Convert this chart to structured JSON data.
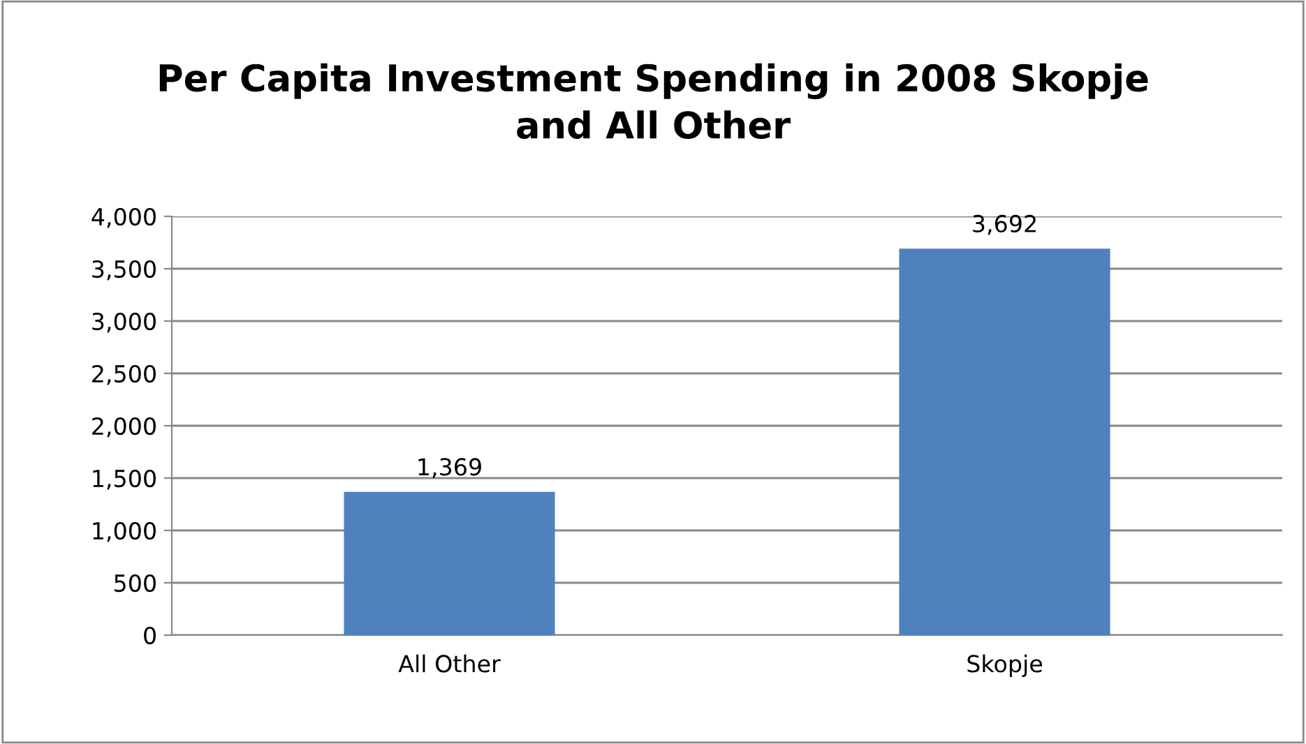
{
  "chart_data": {
    "type": "bar",
    "title": "Per Capita Investment Spending in 2008 Skopje\nand All Other",
    "categories": [
      "All Other",
      "Skopje"
    ],
    "values": [
      1369,
      3692
    ],
    "color": "#4f81bd",
    "value_labels": [
      "1,369",
      "3,692"
    ],
    "ylim": [
      0,
      4000
    ],
    "yticks": [
      0,
      500,
      {
        "value": 1000,
        "label": "1,000"
      },
      {
        "value": 1500,
        "label": "1,500"
      },
      {
        "value": 2000,
        "label": "2,000"
      },
      {
        "value": 2500,
        "label": "2,500"
      },
      {
        "value": 3000,
        "label": "3,000"
      },
      {
        "value": 3500,
        "label": "3,500"
      },
      {
        "value": 4000,
        "label": "4,000"
      }
    ],
    "grid": "y",
    "legend": false
  }
}
